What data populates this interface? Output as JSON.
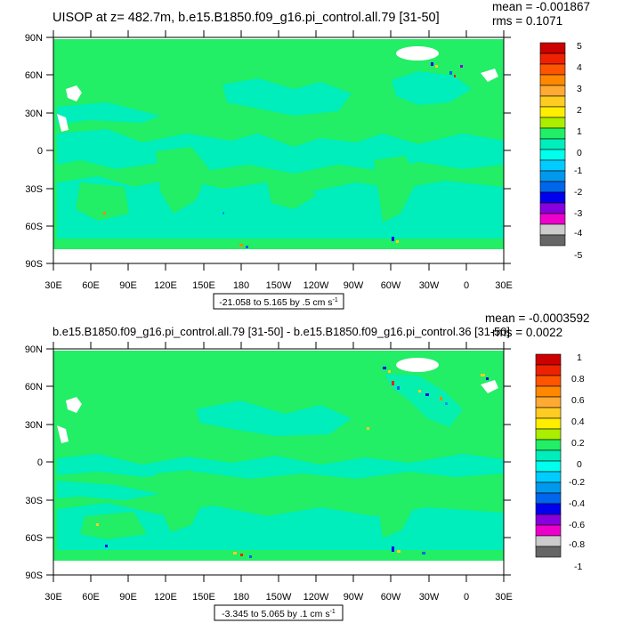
{
  "panels": [
    {
      "id": "top",
      "title": "UISOP at z= 482.7m, b.e15.B1850.f09_g16.pi_control.all.79 [31-50]",
      "mean": "mean = -0.001867",
      "rms": "rms = 0.1071",
      "range": "-21.058 to 5.165 by .5 cm s",
      "range_sup": "-1",
      "colorbar_labels": [
        "5",
        "4",
        "3",
        "2",
        "1",
        "0",
        "-1",
        "-2",
        "-3",
        "-4",
        "-5"
      ]
    },
    {
      "id": "bottom",
      "title": "b.e15.B1850.f09_g16.pi_control.all.79 [31-50] - b.e15.B1850.f09_g16.pi_control.36 [31-50]",
      "mean": "mean = -0.0003592",
      "rms": "rms = 0.0022",
      "range": "-3.345 to 5.065 by .1 cm s",
      "range_sup": "-1",
      "colorbar_labels": [
        "1",
        "0.8",
        "0.6",
        "0.4",
        "0.2",
        "0",
        "-0.2",
        "-0.4",
        "-0.6",
        "-0.8",
        "-1"
      ]
    }
  ],
  "map": {
    "lat_labels": [
      "90N",
      "60N",
      "30N",
      "0",
      "30S",
      "60S",
      "90S"
    ],
    "lon_labels": [
      "30E",
      "60E",
      "90E",
      "120E",
      "150E",
      "180",
      "150W",
      "120W",
      "90W",
      "60W",
      "30W",
      "0",
      "30E"
    ]
  },
  "colors": {
    "land_green": "#22ee66",
    "ocean_cyan": "#00eebb",
    "missing": "#ffffff",
    "palette": [
      "#cc0000",
      "#ee2200",
      "#ff5500",
      "#ff8800",
      "#ffaa33",
      "#ffcc22",
      "#ffee00",
      "#aaee00",
      "#22ee66",
      "#00eebb",
      "#00ffee",
      "#00ccff",
      "#0099ee",
      "#0066ee",
      "#0000ee",
      "#8800dd",
      "#ee00cc",
      "#cccccc",
      "#666666"
    ]
  }
}
